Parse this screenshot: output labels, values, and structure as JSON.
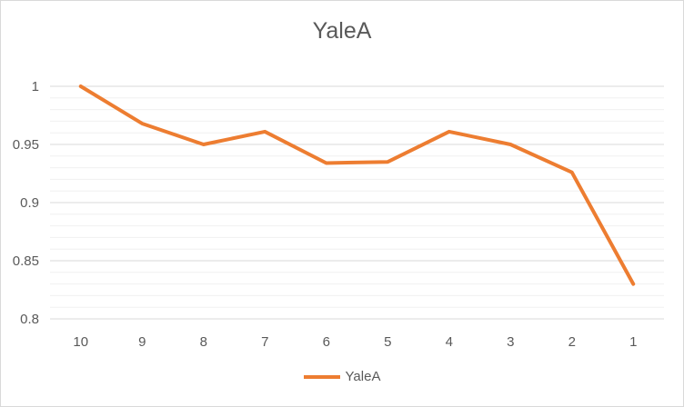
{
  "chart_data": {
    "type": "line",
    "title": "YaleA",
    "categories": [
      "10",
      "9",
      "8",
      "7",
      "6",
      "5",
      "4",
      "3",
      "2",
      "1"
    ],
    "series": [
      {
        "name": "YaleA",
        "color": "#ED7D31",
        "values": [
          1.0,
          0.968,
          0.95,
          0.961,
          0.934,
          0.935,
          0.961,
          0.95,
          0.926,
          0.83
        ]
      }
    ],
    "ylim": [
      0.8,
      1.0
    ],
    "yticks": [
      "0.8",
      "0.85",
      "0.9",
      "0.95",
      "1"
    ],
    "grid": true,
    "legend": "bottom"
  }
}
